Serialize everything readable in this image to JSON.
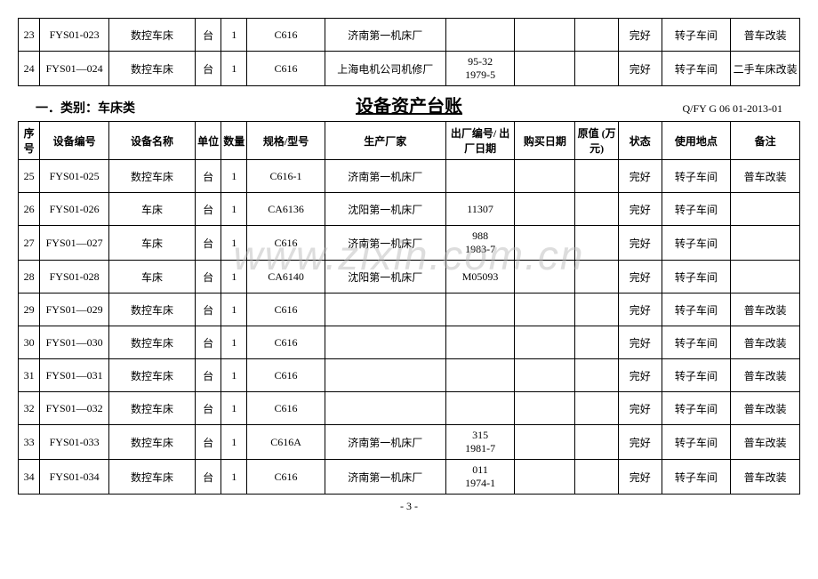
{
  "topRows": [
    {
      "seq": "23",
      "code": "FYS01-023",
      "name": "数控车床",
      "unit": "台",
      "qty": "1",
      "spec": "C616",
      "factory": "济南第一机床厂",
      "serial": "",
      "buydate": "",
      "value": "",
      "status": "完好",
      "place": "转子车间",
      "remark": "普车改装"
    },
    {
      "seq": "24",
      "code": "FYS01—024",
      "name": "数控车床",
      "unit": "台",
      "qty": "1",
      "spec": "C616",
      "factory": "上海电机公司机修厂",
      "serial": "95-32\n1979-5",
      "buydate": "",
      "value": "",
      "status": "完好",
      "place": "转子车间",
      "remark": "二手车床改装"
    }
  ],
  "title": {
    "left": "一．类别：车床类",
    "center": "设备资产台账",
    "right": "Q/FY G 06 01-2013-01"
  },
  "headers": {
    "seq": "序号",
    "code": "设备编号",
    "name": "设备名称",
    "unit": "单位",
    "qty": "数量",
    "spec": "规格/型号",
    "factory": "生产厂家",
    "serial": "出厂编号/\n出厂日期",
    "buydate": "购买日期",
    "value": "原值\n(万元)",
    "status": "状态",
    "place": "使用地点",
    "remark": "备注"
  },
  "rows": [
    {
      "seq": "25",
      "code": "FYS01-025",
      "name": "数控车床",
      "unit": "台",
      "qty": "1",
      "spec": "C616-1",
      "factory": "济南第一机床厂",
      "serial": "",
      "buydate": "",
      "value": "",
      "status": "完好",
      "place": "转子车间",
      "remark": "普车改装"
    },
    {
      "seq": "26",
      "code": "FYS01-026",
      "name": "车床",
      "unit": "台",
      "qty": "1",
      "spec": "CA6136",
      "factory": "沈阳第一机床厂",
      "serial": "11307",
      "buydate": "",
      "value": "",
      "status": "完好",
      "place": "转子车间",
      "remark": ""
    },
    {
      "seq": "27",
      "code": "FYS01—027",
      "name": "车床",
      "unit": "台",
      "qty": "1",
      "spec": "C616",
      "factory": "济南第一机床厂",
      "serial": "988\n1983-7",
      "buydate": "",
      "value": "",
      "status": "完好",
      "place": "转子车间",
      "remark": ""
    },
    {
      "seq": "28",
      "code": "FYS01-028",
      "name": "车床",
      "unit": "台",
      "qty": "1",
      "spec": "CA6140",
      "factory": "沈阳第一机床厂",
      "serial": "M05093",
      "buydate": "",
      "value": "",
      "status": "完好",
      "place": "转子车间",
      "remark": ""
    },
    {
      "seq": "29",
      "code": "FYS01—029",
      "name": "数控车床",
      "unit": "台",
      "qty": "1",
      "spec": "C616",
      "factory": "",
      "serial": "",
      "buydate": "",
      "value": "",
      "status": "完好",
      "place": "转子车间",
      "remark": "普车改装"
    },
    {
      "seq": "30",
      "code": "FYS01—030",
      "name": "数控车床",
      "unit": "台",
      "qty": "1",
      "spec": "C616",
      "factory": "",
      "serial": "",
      "buydate": "",
      "value": "",
      "status": "完好",
      "place": "转子车间",
      "remark": "普车改装"
    },
    {
      "seq": "31",
      "code": "FYS01—031",
      "name": "数控车床",
      "unit": "台",
      "qty": "1",
      "spec": "C616",
      "factory": "",
      "serial": "",
      "buydate": "",
      "value": "",
      "status": "完好",
      "place": "转子车间",
      "remark": "普车改装"
    },
    {
      "seq": "32",
      "code": "FYS01—032",
      "name": "数控车床",
      "unit": "台",
      "qty": "1",
      "spec": "C616",
      "factory": "",
      "serial": "",
      "buydate": "",
      "value": "",
      "status": "完好",
      "place": "转子车间",
      "remark": "普车改装"
    },
    {
      "seq": "33",
      "code": "FYS01-033",
      "name": "数控车床",
      "unit": "台",
      "qty": "1",
      "spec": "C616A",
      "factory": "济南第一机床厂",
      "serial": "315\n1981-7",
      "buydate": "",
      "value": "",
      "status": "完好",
      "place": "转子车间",
      "remark": "普车改装"
    },
    {
      "seq": "34",
      "code": "FYS01-034",
      "name": "数控车床",
      "unit": "台",
      "qty": "1",
      "spec": "C616",
      "factory": "济南第一机床厂",
      "serial": "011\n1974-1",
      "buydate": "",
      "value": "",
      "status": "完好",
      "place": "转子车间",
      "remark": "普车改装"
    }
  ],
  "footer": "- 3 -",
  "watermark": "www.zixin.com.cn"
}
